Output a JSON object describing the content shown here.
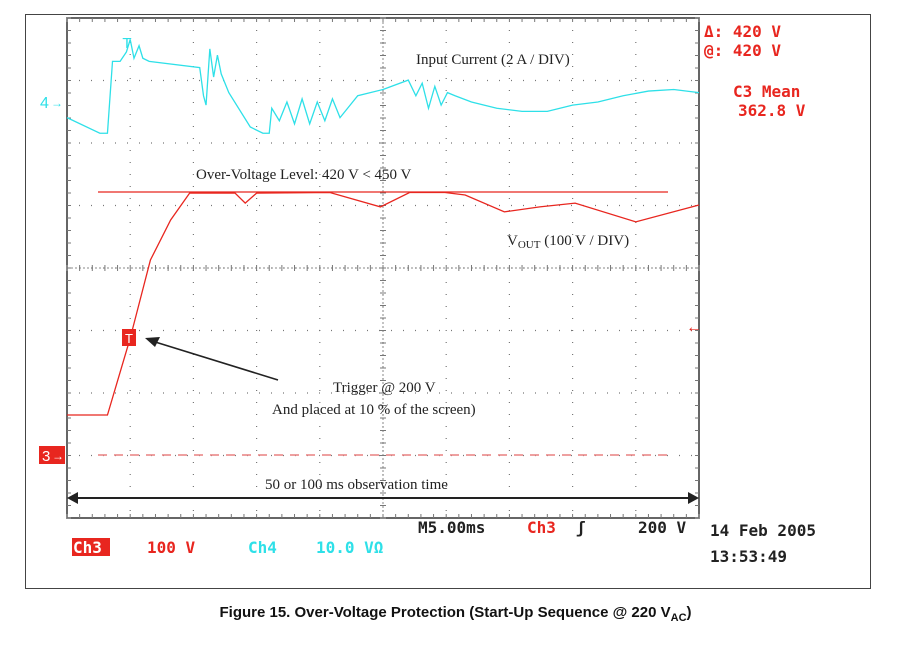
{
  "chart_data": {
    "type": "line",
    "title": "",
    "x_unit": "ms",
    "xlim": [
      0,
      50
    ],
    "time_per_div": "M5.00ms",
    "grid": true,
    "series": [
      {
        "name": "Input Current (2 A / DIV)",
        "channel": "Ch4",
        "color": "#2ee0e8",
        "unit": "A",
        "x": [
          0,
          2.6,
          3.2,
          3.6,
          4.2,
          4.7,
          5.0,
          5.3,
          5.7,
          6.0,
          6.5,
          10.5,
          10.8,
          11.0,
          11.3,
          11.6,
          11.9,
          12.2,
          12.8,
          14.5,
          15.5,
          16.0,
          16.2,
          16.8,
          17.4,
          18.0,
          18.6,
          19.2,
          19.8,
          20.4,
          21.0,
          21.6,
          22.2,
          23.0,
          25.0,
          27.0,
          27.6,
          28.1,
          28.6,
          29.1,
          29.6,
          30.1,
          30.7,
          32.0,
          34.0,
          36.0,
          38.0,
          40.0,
          42.0,
          44.0,
          46.0,
          48.0,
          50.0
        ],
        "values": [
          -0.5,
          -1.0,
          -1.0,
          1.3,
          1.3,
          1.6,
          2.0,
          1.4,
          1.8,
          1.4,
          1.3,
          1.1,
          0.2,
          -0.1,
          1.7,
          0.8,
          1.5,
          0.9,
          0.3,
          -0.8,
          -1.0,
          -1.0,
          -0.2,
          -0.6,
          0.0,
          -0.7,
          0.1,
          -0.7,
          0.0,
          -0.6,
          0.1,
          -0.5,
          -0.2,
          0.2,
          0.4,
          0.7,
          0.2,
          0.6,
          -0.2,
          0.5,
          -0.1,
          0.3,
          0.2,
          0.0,
          -0.2,
          -0.3,
          -0.3,
          -0.1,
          0.0,
          0.2,
          0.35,
          0.4,
          0.3
        ]
      },
      {
        "name": "VOUT (100 V / DIV)",
        "channel": "Ch3",
        "color": "#e8261f",
        "unit": "V",
        "x": [
          0,
          3.2,
          5.0,
          6.6,
          8.2,
          9.7,
          13.3,
          14.1,
          15.0,
          20.8,
          24.8,
          27.1,
          29.9,
          31.5,
          34.6,
          37.4,
          40.2,
          45.0,
          50.0
        ],
        "values": [
          64,
          64,
          187,
          312,
          376,
          419,
          419,
          403,
          419,
          420,
          397,
          420,
          420,
          416,
          389,
          397,
          403,
          373,
          400
        ]
      }
    ],
    "over_voltage_level": 420,
    "annotations": {
      "input_current": "Input Current (2 A / DIV)",
      "ov_level": "Over-Voltage Level: 420 V < 450 V",
      "vout_main": "V",
      "vout_sub": "OUT",
      "vout_rest": " (100 V / DIV)",
      "trigger_line1": "Trigger @ 200 V",
      "trigger_line2": "And placed at 10 % of the screen)",
      "observation": "50 or 100 ms observation time"
    },
    "markers": {
      "ch4": "4",
      "ch3": "3",
      "trigger": "T"
    }
  },
  "readouts": {
    "delta": "Δ: 420 V",
    "at": "@: 420 V",
    "mean_label": "C3 Mean",
    "mean_value": "362.8 V",
    "timebase": "M5.00ms",
    "trig_ch": "Ch3",
    "trig_slope": "ʃ",
    "trig_level": "200 V",
    "date": "14 Feb 2005",
    "time": "13:53:49",
    "ch3_label": "Ch3",
    "ch3_scale": "100 V",
    "ch4_label": "Ch4",
    "ch4_scale": "10.0 VΩ"
  },
  "caption": {
    "main": "Figure 15. Over-Voltage Protection (Start-Up Sequence @ 220 V",
    "sub": "AC",
    "end": ")"
  }
}
